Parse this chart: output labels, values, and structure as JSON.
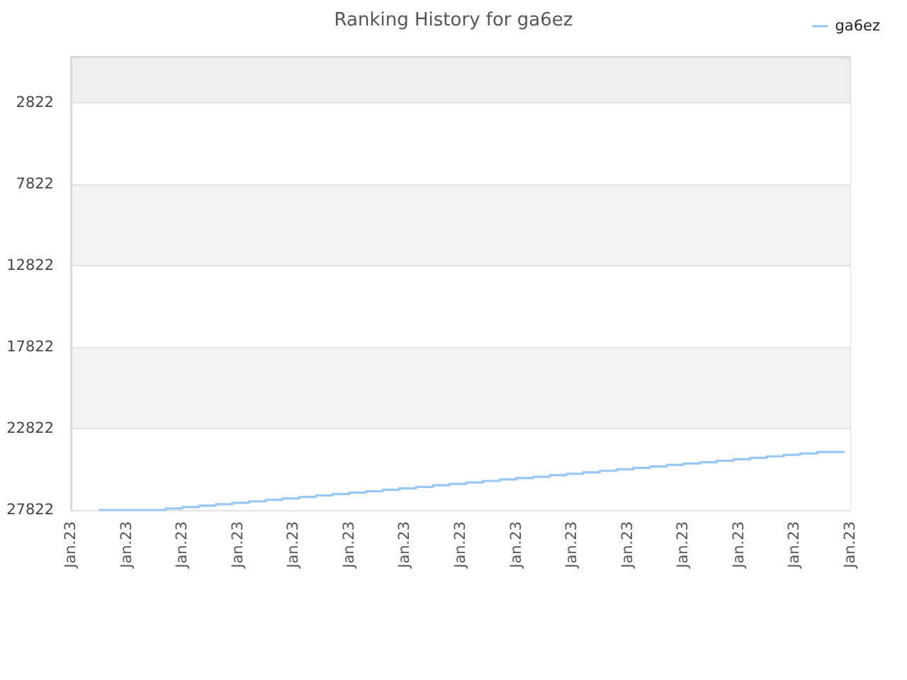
{
  "chart_data": {
    "type": "step",
    "title": "Ranking History for ga6ez",
    "categories": [
      "Jan.23",
      null,
      null,
      null,
      null,
      null,
      null,
      null,
      null,
      null,
      "Jan.23",
      null,
      null,
      null,
      null,
      null,
      null,
      null,
      null,
      null,
      "Jan.23",
      null,
      null,
      null,
      null,
      null,
      null,
      null,
      null,
      null,
      "Jan.23",
      null,
      null,
      null,
      null,
      null,
      null,
      null,
      null,
      null,
      "Jan.23",
      null,
      null,
      null,
      null,
      null,
      null,
      null,
      null,
      null,
      "Jan.23",
      null,
      null,
      null,
      null,
      null,
      null,
      null,
      null,
      null,
      "Jan.23",
      null,
      null,
      null,
      null,
      null,
      null,
      null,
      null,
      null,
      "Jan.23",
      null,
      null,
      null,
      null,
      null,
      null,
      null,
      null,
      null,
      "Jan.23",
      null,
      null,
      null,
      null,
      null,
      null,
      null,
      null,
      null,
      "Jan.23",
      null,
      null,
      null,
      null,
      null,
      null,
      null,
      null,
      null,
      "Jan.23",
      null,
      null,
      null,
      null,
      null,
      null,
      null,
      null,
      null,
      "Jan.23",
      null,
      null,
      null,
      null,
      null,
      null,
      null,
      null,
      null,
      "Jan.23",
      null,
      null,
      null,
      null,
      null,
      null,
      null,
      null,
      null,
      "Jan.23",
      null,
      null,
      null,
      null,
      null,
      null,
      null,
      null,
      null,
      "Jan.23"
    ],
    "ylim": [
      27822,
      0
    ],
    "yticks": [
      2822,
      7822,
      12822,
      17822,
      22822,
      27822
    ],
    "series": [
      {
        "name": "ga6ez",
        "color": "#99c8f5",
        "values": [
          null,
          null,
          null,
          null,
          null,
          27822,
          27822,
          27822,
          27822,
          27822,
          27822,
          27822,
          27822,
          27822,
          27822,
          27822,
          27822,
          27730,
          27730,
          27730,
          27640,
          27640,
          27640,
          27560,
          27560,
          27560,
          27470,
          27470,
          27470,
          27380,
          27380,
          27380,
          27290,
          27290,
          27290,
          27200,
          27200,
          27200,
          27110,
          27110,
          27110,
          27020,
          27020,
          27020,
          26930,
          26930,
          26930,
          26840,
          26840,
          26840,
          26750,
          26750,
          26750,
          26670,
          26670,
          26670,
          26580,
          26580,
          26580,
          26490,
          26490,
          26490,
          26400,
          26400,
          26400,
          26310,
          26310,
          26310,
          26220,
          26220,
          26220,
          26130,
          26130,
          26130,
          26040,
          26040,
          26040,
          25950,
          25950,
          25950,
          25860,
          25860,
          25860,
          25780,
          25780,
          25780,
          25690,
          25690,
          25690,
          25600,
          25600,
          25600,
          25510,
          25510,
          25510,
          25420,
          25420,
          25420,
          25330,
          25330,
          25330,
          25240,
          25240,
          25240,
          25150,
          25150,
          25150,
          25060,
          25060,
          25060,
          24970,
          24970,
          24970,
          24890,
          24890,
          24890,
          24800,
          24800,
          24800,
          24710,
          24710,
          24710,
          24620,
          24620,
          24620,
          24530,
          24530,
          24530,
          24440,
          24440,
          24440,
          24350,
          24350,
          24350,
          24260,
          24260,
          24260,
          24260,
          24260,
          24260,
          null
        ]
      }
    ],
    "grid": "y",
    "legend": "top right"
  }
}
